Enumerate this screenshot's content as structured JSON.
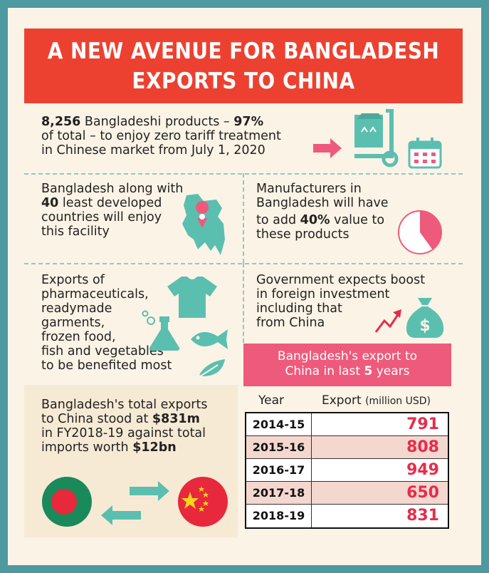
{
  "title": {
    "line1": "A NEW AVENUE FOR BANGLADESH",
    "line2": "EXPORTS TO CHINA"
  },
  "block1": {
    "b1": "8,256",
    "t1": " Bangladeshi products – ",
    "b2": "97%",
    "t2": "of total – to enjoy zero tariff treatment",
    "t3": "in Chinese market from July 1, 2020"
  },
  "block2": {
    "t1": "Bangladesh along with",
    "b1": "40",
    "t2": " least developed",
    "t3": "countries will enjoy",
    "t4": "this facility"
  },
  "block3": {
    "t1": "Manufacturers in",
    "t2": "Bangladesh will have",
    "t3": "to add ",
    "b1": "40%",
    "t4": " value to",
    "t5": "these products"
  },
  "block4": {
    "lines": [
      "Exports of",
      "pharmaceuticals,",
      "readymade",
      "garments,",
      "frozen food,",
      "fish and vegetables",
      "to be benefited most"
    ]
  },
  "block5": {
    "lines": [
      "Government expects boost",
      "in foreign investment",
      "including that",
      "from China"
    ]
  },
  "block6": {
    "t1": "Bangladesh's total exports",
    "t2": "to China stood at ",
    "b1": "$831m",
    "t3": "in FY2018-19 against total",
    "t4": "imports worth ",
    "b2": "$12bn"
  },
  "table": {
    "heading_line1": "Bangladesh's export to",
    "heading_line2_a": "China in last ",
    "heading_line2_b": "5",
    "heading_line2_c": " years",
    "col_year": "Year",
    "col_export": "Export",
    "col_unit": "(million USD)",
    "rows": [
      {
        "year": "2014-15",
        "value": "791"
      },
      {
        "year": "2015-16",
        "value": "808"
      },
      {
        "year": "2016-17",
        "value": "949"
      },
      {
        "year": "2017-18",
        "value": "650"
      },
      {
        "year": "2018-19",
        "value": "831"
      }
    ]
  },
  "colors": {
    "background": "#4e9aa1",
    "title": "#ec4130",
    "accent": "#ee5a7b",
    "value": "#e62c4a",
    "icon": "#5bbfb0"
  },
  "icons": [
    "arrow-right-icon",
    "hand-truck-icon",
    "calendar-icon",
    "bangladesh-map-icon",
    "pie-icon",
    "tshirt-icon",
    "flask-icon",
    "fish-icon",
    "leaf-icon",
    "trend-arrow-icon",
    "money-bag-icon",
    "bangladesh-flag-icon",
    "china-flag-icon",
    "exchange-arrows-icon"
  ],
  "pie_fraction": 0.4
}
